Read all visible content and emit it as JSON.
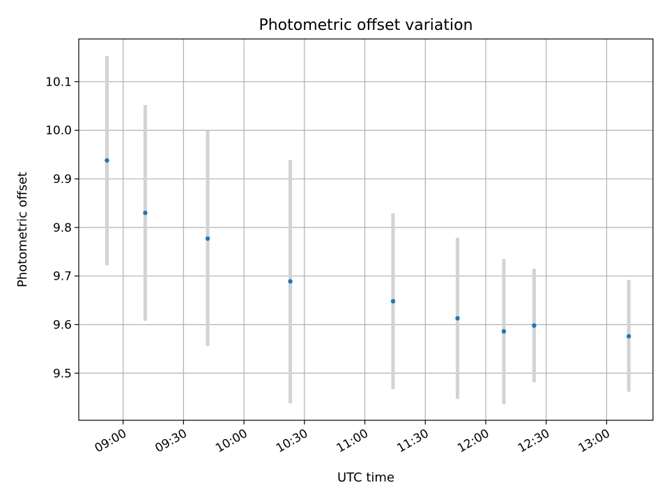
{
  "chart_data": {
    "type": "scatter",
    "title": "Photometric offset variation",
    "xlabel": "UTC time",
    "ylabel": "Photometric offset",
    "x_tick_labels": [
      "09:00",
      "09:30",
      "10:00",
      "10:30",
      "11:00",
      "11:30",
      "12:00",
      "12:30",
      "13:00"
    ],
    "y_ticks": [
      9.5,
      9.6,
      9.7,
      9.8,
      9.9,
      10.0,
      10.1
    ],
    "y_tick_labels": [
      "9.5",
      "9.6",
      "9.7",
      "9.8",
      "9.9",
      "10.0",
      "10.1"
    ],
    "xlim": [
      "08:38",
      "13:23"
    ],
    "ylim": [
      9.403,
      10.188
    ],
    "grid": true,
    "colors": {
      "point": "#1f77b4",
      "errorbar": "#d3d3d3",
      "grid": "#b0b0b0"
    },
    "points": [
      {
        "x": "08:52",
        "y": 9.938,
        "ylow": 9.722,
        "yhigh": 10.153
      },
      {
        "x": "09:11",
        "y": 9.83,
        "ylow": 9.608,
        "yhigh": 10.052
      },
      {
        "x": "09:42",
        "y": 9.777,
        "ylow": 9.556,
        "yhigh": 9.999
      },
      {
        "x": "10:23",
        "y": 9.689,
        "ylow": 9.438,
        "yhigh": 9.939
      },
      {
        "x": "11:14",
        "y": 9.648,
        "ylow": 9.467,
        "yhigh": 9.829
      },
      {
        "x": "11:46",
        "y": 9.613,
        "ylow": 9.447,
        "yhigh": 9.779
      },
      {
        "x": "12:09",
        "y": 9.586,
        "ylow": 9.436,
        "yhigh": 9.735
      },
      {
        "x": "12:24",
        "y": 9.598,
        "ylow": 9.481,
        "yhigh": 9.715
      },
      {
        "x": "13:11",
        "y": 9.576,
        "ylow": 9.462,
        "yhigh": 9.692
      }
    ]
  }
}
